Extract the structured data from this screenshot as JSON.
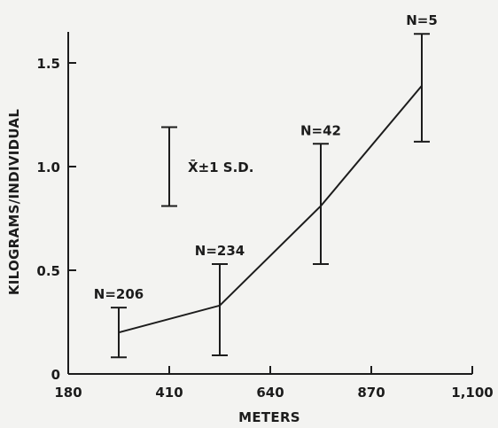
{
  "chart_data": {
    "type": "line",
    "title": "",
    "xlabel": "METERS",
    "ylabel": "KILOGRAMS/INDIVIDUAL",
    "xlim": [
      180,
      1100
    ],
    "ylim": [
      0,
      1.65
    ],
    "x_ticks": [
      "180",
      "410",
      "640",
      "870",
      "1,100"
    ],
    "y_ticks": [
      "0",
      "0.5",
      "1.0",
      "1.5"
    ],
    "x_tick_values": [
      180,
      410,
      640,
      870,
      1100
    ],
    "y_tick_values": [
      0,
      0.5,
      1.0,
      1.5
    ],
    "grid": false,
    "points": [
      {
        "x": 295,
        "y": 0.2,
        "low": 0.08,
        "high": 0.32,
        "n_label": "N=206"
      },
      {
        "x": 525,
        "y": 0.33,
        "low": 0.09,
        "high": 0.53,
        "n_label": "N=234"
      },
      {
        "x": 755,
        "y": 0.81,
        "low": 0.53,
        "high": 1.11,
        "n_label": "N=42"
      },
      {
        "x": 985,
        "y": 1.39,
        "low": 1.12,
        "high": 1.64,
        "n_label": "N=5"
      }
    ],
    "legend": {
      "label": "X̄±1 S.D.",
      "x": 410,
      "low": 0.81,
      "high": 1.19
    }
  }
}
